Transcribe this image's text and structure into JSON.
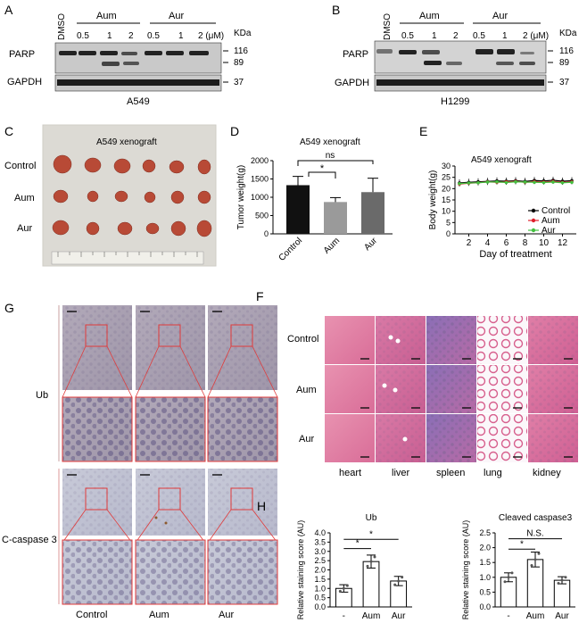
{
  "panels": {
    "A": {
      "letter": "A",
      "dmso": "DMSO",
      "aum": "Aum",
      "aur": "Aur",
      "concs": [
        "0.5",
        "1",
        "2",
        "0.5",
        "1",
        "2 (μM)"
      ],
      "kda": "KDa",
      "parp": "PARP",
      "gapdh": "GAPDH",
      "mw": [
        "116",
        "89",
        "37"
      ],
      "cell": "A549"
    },
    "B": {
      "letter": "B",
      "dmso": "DMSO",
      "aum": "Aum",
      "aur": "Aur",
      "concs": [
        "0.5",
        "1",
        "2",
        "0.5",
        "1",
        "2 (μM)"
      ],
      "kda": "KDa",
      "parp": "PARP",
      "gapdh": "GAPDH",
      "mw": [
        "116",
        "89",
        "37"
      ],
      "cell": "H1299"
    },
    "C": {
      "letter": "C",
      "title": "A549 xenograft",
      "rows": [
        "Control",
        "Aum",
        "Aur"
      ]
    },
    "D": {
      "letter": "D",
      "title": "A549 xenograft",
      "sig1": "*",
      "sig2": "ns"
    },
    "E": {
      "letter": "E",
      "title": "A549 xenograft"
    },
    "F": {
      "letter": "F",
      "rows": [
        "Control",
        "Aum",
        "Aur"
      ],
      "cols": [
        "heart",
        "liver",
        "spleen",
        "lung",
        "kidney"
      ]
    },
    "G": {
      "letter": "G",
      "rows": [
        "Ub",
        "C-caspase 3"
      ],
      "cols": [
        "Control",
        "Aum",
        "Aur"
      ]
    },
    "H": {
      "letter": "H",
      "sig1": "*",
      "sig2": "*",
      "sig3": "*",
      "sig4": "N.S."
    }
  },
  "chart_data": [
    {
      "type": "bar",
      "panel": "D",
      "title": "A549 xenograft",
      "categories": [
        "Control",
        "Aum",
        "Aur"
      ],
      "values": [
        1330,
        870,
        1140
      ],
      "errors": [
        240,
        120,
        380
      ],
      "colors": [
        "#111111",
        "#9a9a9a",
        "#6a6a6a"
      ],
      "ylabel": "Tumor weight(g)",
      "ylim": [
        0,
        2000
      ],
      "yticks": [
        "0",
        "500",
        "1000",
        "1500",
        "2000"
      ]
    },
    {
      "type": "line",
      "panel": "E",
      "title": "A549 xenograft",
      "x": [
        1,
        2,
        3,
        4,
        5,
        6,
        7,
        8,
        9,
        10,
        11,
        12,
        13
      ],
      "series": [
        {
          "name": "Control",
          "color": "#000000",
          "values": [
            22.5,
            22.8,
            23.0,
            23.2,
            23.4,
            23.3,
            23.5,
            23.2,
            23.6,
            23.4,
            23.7,
            23.3,
            23.5
          ]
        },
        {
          "name": "Aum",
          "color": "#e0202c",
          "values": [
            22.0,
            22.4,
            22.6,
            23.0,
            22.8,
            23.0,
            23.2,
            22.8,
            23.1,
            22.9,
            23.2,
            22.8,
            23.0
          ]
        },
        {
          "name": "Aur",
          "color": "#44c040",
          "values": [
            22.2,
            22.5,
            22.6,
            22.9,
            23.0,
            22.7,
            23.0,
            22.9,
            22.8,
            22.7,
            22.9,
            22.6,
            22.8
          ]
        }
      ],
      "xlabel": "Day of treatment",
      "ylabel": "Body weight(g)",
      "ylim": [
        0,
        30
      ],
      "yticks": [
        "0",
        "5",
        "10",
        "15",
        "20",
        "25",
        "30"
      ],
      "xticks": [
        "2",
        "4",
        "6",
        "8",
        "10",
        "12"
      ]
    },
    {
      "type": "bar",
      "panel": "H-left",
      "title": "Ub",
      "categories": [
        "-",
        "Aum",
        "Aur"
      ],
      "values": [
        1.0,
        2.45,
        1.4
      ],
      "errors": [
        0.2,
        0.35,
        0.25
      ],
      "points": [
        [
          0.85,
          1.0,
          1.15
        ],
        [
          2.2,
          2.45,
          2.7
        ],
        [
          1.2,
          1.4,
          1.6
        ]
      ],
      "ylabel": "Relative staining score (AU)",
      "ylim": [
        0,
        4
      ],
      "yticks": [
        "0.0",
        "0.5",
        "1.0",
        "1.5",
        "2.0",
        "2.5",
        "3.0",
        "3.5",
        "4.0"
      ]
    },
    {
      "type": "bar",
      "panel": "H-right",
      "title": "Cleaved caspase3",
      "categories": [
        "-",
        "Aum",
        "Aur"
      ],
      "values": [
        1.0,
        1.6,
        0.9
      ],
      "errors": [
        0.15,
        0.25,
        0.12
      ],
      "points": [
        [
          0.85,
          1.0,
          1.15
        ],
        [
          1.4,
          1.6,
          1.8
        ],
        [
          0.8,
          0.9,
          1.0
        ]
      ],
      "ylabel": "Relative staining score (AU)",
      "ylim": [
        0,
        2.5
      ],
      "yticks": [
        "0.0",
        "0.5",
        "1.0",
        "1.5",
        "2.0",
        "2.5"
      ]
    }
  ]
}
